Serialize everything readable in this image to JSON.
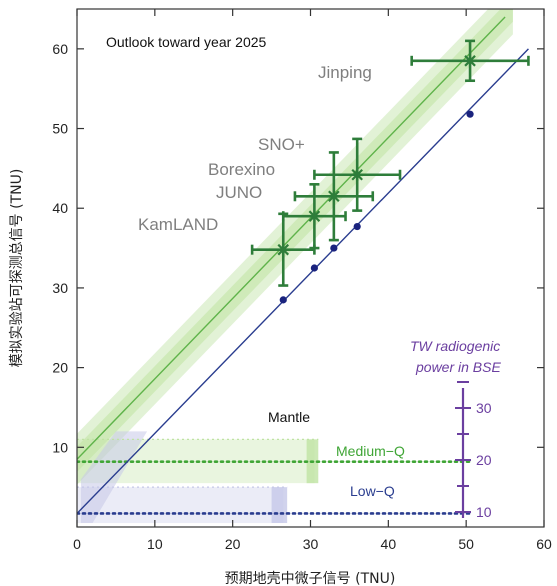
{
  "chart_data": {
    "type": "scatter",
    "title": "Outlook toward year 2025",
    "xlabel": "预期地壳中微子信号 (TNU)",
    "ylabel": "模拟实验站可探测总信号 (TNU)",
    "xlim": [
      0,
      60
    ],
    "ylim": [
      0,
      65
    ],
    "x_ticks": [
      "0",
      "10",
      "20",
      "30",
      "40",
      "50",
      "60"
    ],
    "y_ticks": [
      "10",
      "20",
      "30",
      "40",
      "50",
      "60"
    ],
    "grid": false,
    "colors": {
      "measured": "#2e7d3a",
      "band_green": "#bfe3a3",
      "line_green": "#5fb34a",
      "crust_line": "#2a3d8f",
      "crust_points": "#1a237e",
      "power_axis": "#6b3fa0",
      "medium_q": "#3fa535",
      "low_q": "#2a3d8f",
      "band_blue": "#c6c8e8"
    },
    "series": [
      {
        "name": "",
        "role": "measured total signal",
        "points": [
          {
            "label": "KamLAND",
            "x": 26.5,
            "y": 34.8,
            "xerr": 4.0,
            "yerr": 4.5
          },
          {
            "label": "JUNO",
            "x": 30.5,
            "y": 39.0,
            "xerr": 4.0,
            "yerr": 4.0
          },
          {
            "label": "Borexino",
            "x": 33.0,
            "y": 41.5,
            "xerr": 5.0,
            "yerr": 5.5
          },
          {
            "label": "SNO+",
            "x": 36.0,
            "y": 44.2,
            "xerr": 5.5,
            "yerr": 4.5
          },
          {
            "label": "Jinping",
            "x": 50.5,
            "y": 58.5,
            "xerr": 7.5,
            "yerr": 2.5
          }
        ]
      },
      {
        "name": "",
        "role": "expected crust signal",
        "points": [
          {
            "x": 26.5,
            "y": 28.5
          },
          {
            "x": 30.5,
            "y": 32.5
          },
          {
            "x": 33.0,
            "y": 35.0
          },
          {
            "x": 36.0,
            "y": 37.7
          },
          {
            "x": 50.5,
            "y": 51.8
          }
        ]
      }
    ],
    "lines": {
      "crust": {
        "from": [
          0,
          1.7
        ],
        "to": [
          58,
          60
        ]
      },
      "total": {
        "from": [
          0,
          8.5
        ],
        "to": [
          55,
          64
        ]
      }
    },
    "mantle": {
      "label": "Mantle",
      "medium_q": {
        "label": "Medium−Q",
        "y": 8.2
      },
      "low_q": {
        "label": "Low−Q",
        "y": 1.7
      }
    },
    "power_axis": {
      "title_line1": "TW radiogenic",
      "title_line2": "power in BSE",
      "ticks": [
        "10",
        "20",
        "30"
      ]
    }
  }
}
